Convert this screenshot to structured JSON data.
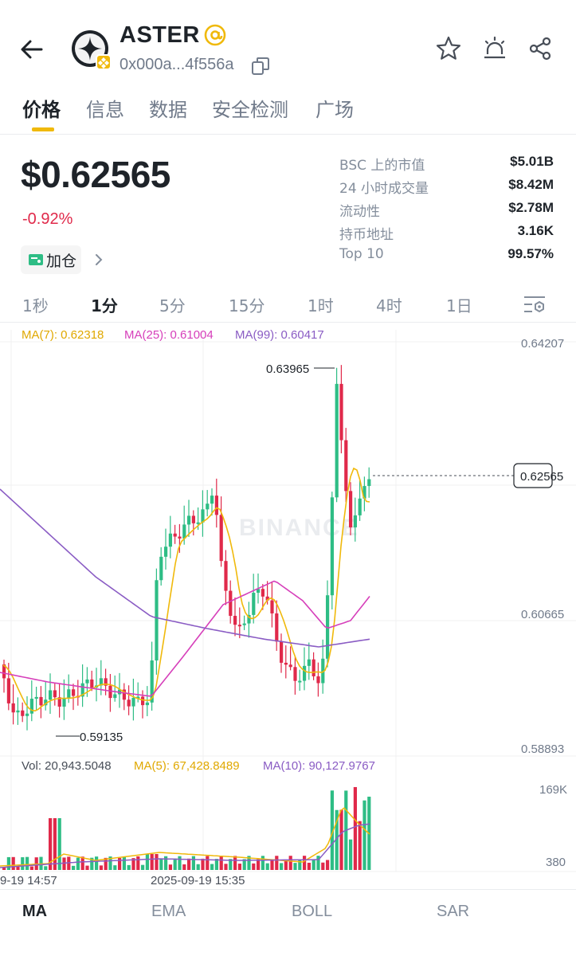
{
  "header": {
    "token_name": "ASTER",
    "address": "0x000a...4f556a"
  },
  "tabs": [
    "价格",
    "信息",
    "数据",
    "安全检测",
    "广场"
  ],
  "price": {
    "value": "$0.62565",
    "change": "-0.92%",
    "add_position_label": "加仓"
  },
  "stats": [
    {
      "label": "BSC 上的市值",
      "value": "$5.01B"
    },
    {
      "label": "24 小时成交量",
      "value": "$8.42M"
    },
    {
      "label": "流动性",
      "value": "$2.78M"
    },
    {
      "label": "持币地址",
      "value": "3.16K"
    },
    {
      "label": "Top 10",
      "value": "99.57%"
    }
  ],
  "intervals": [
    "1秒",
    "1分",
    "5分",
    "15分",
    "1时",
    "4时",
    "1日"
  ],
  "chart": {
    "ma7": "MA(7): 0.62318",
    "ma25": "MA(25): 0.61004",
    "ma99": "MA(99): 0.60417",
    "y_labels": [
      "0.64207",
      "0.60665",
      "0.58893"
    ],
    "current_price": "0.62565",
    "high_label": "0.63965",
    "low_label": "0.59135",
    "watermark": "BINANCE",
    "vol": "Vol: 20,943.5048",
    "vol_ma5": "MA(5): 67,428.8489",
    "vol_ma10": "MA(10): 90,127.9767",
    "vol_labels": [
      "169K",
      "380"
    ],
    "time_labels": [
      "9-19 14:57",
      "2025-09-19 15:35"
    ]
  },
  "colors": {
    "up": "#2ebd85",
    "down": "#e0294a",
    "ma7": "#F0B90B",
    "ma25": "#d63fba",
    "ma99": "#8a5cc4",
    "accent": "#F0B90B"
  },
  "chart_data": {
    "type": "candlestick",
    "ylim": [
      0.58893,
      0.64207
    ],
    "high": 0.63965,
    "low": 0.59135,
    "last": 0.62565,
    "indicators": [
      "MA(7)",
      "MA(25)",
      "MA(99)"
    ],
    "x_ticks": [
      "9-19 14:57",
      "2025-09-19 15:35"
    ]
  },
  "bottom_tabs": [
    "MA",
    "EMA",
    "BOLL",
    "SAR"
  ]
}
